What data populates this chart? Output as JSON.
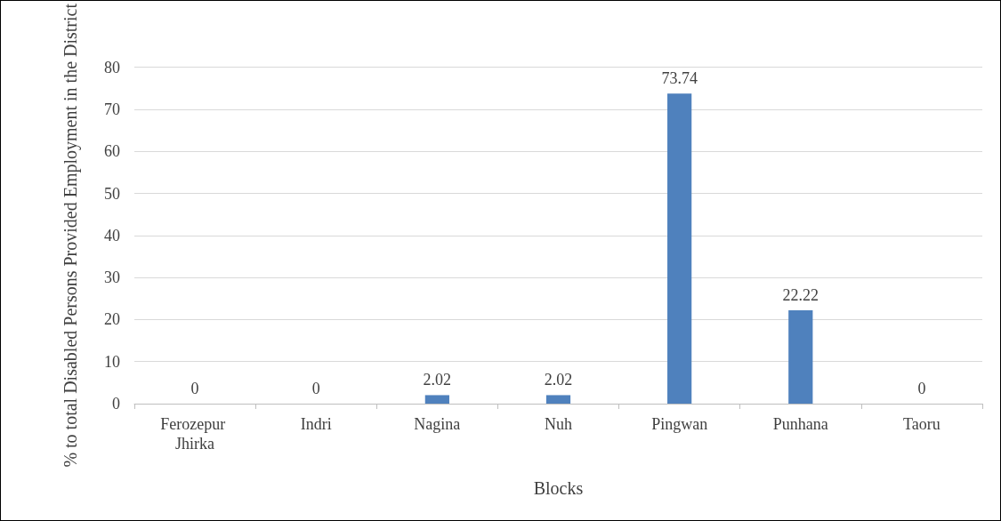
{
  "chart_data": {
    "type": "bar",
    "xlabel": "Blocks",
    "ylabel": "% to total Disabled Persons Provided Employment in the District",
    "categories": [
      "Ferozepur Jhirka",
      "Indri",
      "Nagina",
      "Nuh",
      "Pingwan",
      "Punhana",
      "Taoru"
    ],
    "values": [
      0,
      0,
      2.02,
      2.02,
      73.74,
      22.22,
      0
    ],
    "color": "#4f81bd",
    "ylim": [
      0,
      80
    ],
    "yticks": [
      0,
      10,
      20,
      30,
      40,
      50,
      60,
      70,
      80
    ],
    "grid": "y",
    "data_labels": true
  }
}
